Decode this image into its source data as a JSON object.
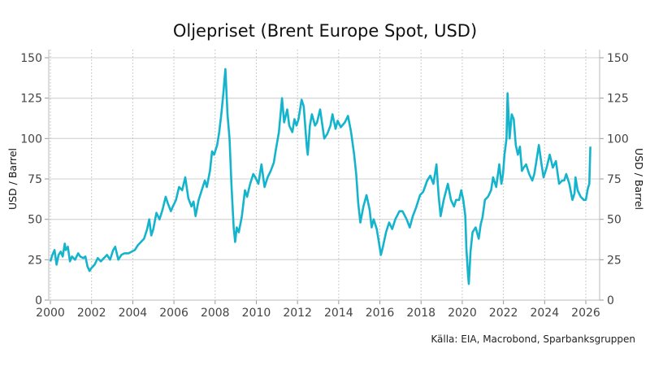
{
  "chart_data": {
    "type": "line",
    "title": "Oljepriset (Brent Europe Spot, USD)",
    "ylabel": "USD / Barrel",
    "ylabel_right": "USD / Barrel",
    "source": "Källa: EIA, Macrobond, Sparbanksgruppen",
    "xlim": [
      2000,
      2026.67
    ],
    "ylim": [
      0,
      150
    ],
    "x_ticks": [
      "2000",
      "2002",
      "2004",
      "2006",
      "2008",
      "2010",
      "2012",
      "2014",
      "2016",
      "2018",
      "2020",
      "2022",
      "2024",
      "2026"
    ],
    "y_ticks": [
      "0",
      "25",
      "50",
      "75",
      "100",
      "125",
      "150"
    ],
    "grid": true,
    "color": "#14B4CC",
    "series": [
      {
        "name": "Brent",
        "points": [
          [
            2000.0,
            24
          ],
          [
            2000.1,
            28
          ],
          [
            2000.2,
            31
          ],
          [
            2000.3,
            22
          ],
          [
            2000.4,
            28
          ],
          [
            2000.5,
            30
          ],
          [
            2000.6,
            27
          ],
          [
            2000.7,
            35
          ],
          [
            2000.75,
            31
          ],
          [
            2000.85,
            33
          ],
          [
            2000.95,
            24
          ],
          [
            2001.05,
            27
          ],
          [
            2001.2,
            25
          ],
          [
            2001.35,
            29
          ],
          [
            2001.45,
            27
          ],
          [
            2001.6,
            26
          ],
          [
            2001.7,
            27
          ],
          [
            2001.8,
            21
          ],
          [
            2001.9,
            18
          ],
          [
            2002.0,
            20
          ],
          [
            2002.15,
            22
          ],
          [
            2002.3,
            26
          ],
          [
            2002.45,
            24
          ],
          [
            2002.6,
            26
          ],
          [
            2002.75,
            28
          ],
          [
            2002.9,
            25
          ],
          [
            2003.05,
            31
          ],
          [
            2003.15,
            33
          ],
          [
            2003.3,
            25
          ],
          [
            2003.45,
            28
          ],
          [
            2003.6,
            29
          ],
          [
            2003.8,
            29
          ],
          [
            2003.95,
            30
          ],
          [
            2004.1,
            31
          ],
          [
            2004.25,
            34
          ],
          [
            2004.4,
            36
          ],
          [
            2004.55,
            38
          ],
          [
            2004.7,
            44
          ],
          [
            2004.8,
            50
          ],
          [
            2004.9,
            40
          ],
          [
            2005.0,
            44
          ],
          [
            2005.15,
            54
          ],
          [
            2005.3,
            50
          ],
          [
            2005.45,
            56
          ],
          [
            2005.6,
            64
          ],
          [
            2005.7,
            60
          ],
          [
            2005.85,
            55
          ],
          [
            2005.95,
            58
          ],
          [
            2006.1,
            62
          ],
          [
            2006.25,
            70
          ],
          [
            2006.4,
            68
          ],
          [
            2006.55,
            76
          ],
          [
            2006.7,
            63
          ],
          [
            2006.85,
            58
          ],
          [
            2006.95,
            61
          ],
          [
            2007.05,
            52
          ],
          [
            2007.2,
            62
          ],
          [
            2007.35,
            68
          ],
          [
            2007.5,
            74
          ],
          [
            2007.6,
            70
          ],
          [
            2007.75,
            80
          ],
          [
            2007.85,
            92
          ],
          [
            2007.95,
            90
          ],
          [
            2008.1,
            96
          ],
          [
            2008.2,
            104
          ],
          [
            2008.3,
            115
          ],
          [
            2008.4,
            128
          ],
          [
            2008.5,
            143
          ],
          [
            2008.6,
            115
          ],
          [
            2008.7,
            100
          ],
          [
            2008.8,
            70
          ],
          [
            2008.9,
            45
          ],
          [
            2008.97,
            36
          ],
          [
            2009.05,
            45
          ],
          [
            2009.15,
            42
          ],
          [
            2009.3,
            52
          ],
          [
            2009.45,
            68
          ],
          [
            2009.55,
            64
          ],
          [
            2009.7,
            72
          ],
          [
            2009.85,
            78
          ],
          [
            2009.95,
            76
          ],
          [
            2010.1,
            72
          ],
          [
            2010.25,
            84
          ],
          [
            2010.4,
            70
          ],
          [
            2010.55,
            76
          ],
          [
            2010.7,
            80
          ],
          [
            2010.85,
            85
          ],
          [
            2010.95,
            93
          ],
          [
            2011.1,
            104
          ],
          [
            2011.25,
            125
          ],
          [
            2011.35,
            110
          ],
          [
            2011.5,
            118
          ],
          [
            2011.6,
            108
          ],
          [
            2011.75,
            104
          ],
          [
            2011.85,
            112
          ],
          [
            2011.95,
            108
          ],
          [
            2012.05,
            112
          ],
          [
            2012.2,
            124
          ],
          [
            2012.3,
            120
          ],
          [
            2012.45,
            95
          ],
          [
            2012.5,
            90
          ],
          [
            2012.6,
            108
          ],
          [
            2012.7,
            115
          ],
          [
            2012.85,
            108
          ],
          [
            2012.95,
            110
          ],
          [
            2013.1,
            118
          ],
          [
            2013.3,
            100
          ],
          [
            2013.45,
            103
          ],
          [
            2013.6,
            108
          ],
          [
            2013.7,
            115
          ],
          [
            2013.85,
            106
          ],
          [
            2013.95,
            111
          ],
          [
            2014.1,
            107
          ],
          [
            2014.3,
            110
          ],
          [
            2014.45,
            114
          ],
          [
            2014.6,
            104
          ],
          [
            2014.75,
            90
          ],
          [
            2014.85,
            78
          ],
          [
            2014.95,
            60
          ],
          [
            2015.05,
            48
          ],
          [
            2015.2,
            58
          ],
          [
            2015.35,
            65
          ],
          [
            2015.5,
            56
          ],
          [
            2015.6,
            45
          ],
          [
            2015.7,
            50
          ],
          [
            2015.85,
            44
          ],
          [
            2015.95,
            36
          ],
          [
            2016.05,
            28
          ],
          [
            2016.15,
            33
          ],
          [
            2016.3,
            42
          ],
          [
            2016.45,
            48
          ],
          [
            2016.6,
            44
          ],
          [
            2016.75,
            50
          ],
          [
            2016.95,
            55
          ],
          [
            2017.1,
            55
          ],
          [
            2017.3,
            50
          ],
          [
            2017.45,
            45
          ],
          [
            2017.6,
            52
          ],
          [
            2017.75,
            57
          ],
          [
            2017.95,
            65
          ],
          [
            2018.1,
            67
          ],
          [
            2018.3,
            74
          ],
          [
            2018.45,
            77
          ],
          [
            2018.6,
            72
          ],
          [
            2018.75,
            84
          ],
          [
            2018.85,
            65
          ],
          [
            2018.95,
            52
          ],
          [
            2019.1,
            62
          ],
          [
            2019.3,
            72
          ],
          [
            2019.45,
            62
          ],
          [
            2019.6,
            58
          ],
          [
            2019.7,
            62
          ],
          [
            2019.85,
            62
          ],
          [
            2019.95,
            68
          ],
          [
            2020.05,
            62
          ],
          [
            2020.15,
            52
          ],
          [
            2020.2,
            32
          ],
          [
            2020.28,
            16
          ],
          [
            2020.32,
            10
          ],
          [
            2020.4,
            30
          ],
          [
            2020.5,
            42
          ],
          [
            2020.65,
            45
          ],
          [
            2020.8,
            38
          ],
          [
            2020.9,
            47
          ],
          [
            2020.98,
            51
          ],
          [
            2021.1,
            62
          ],
          [
            2021.25,
            64
          ],
          [
            2021.4,
            68
          ],
          [
            2021.5,
            76
          ],
          [
            2021.65,
            70
          ],
          [
            2021.8,
            84
          ],
          [
            2021.9,
            72
          ],
          [
            2021.98,
            78
          ],
          [
            2022.05,
            90
          ],
          [
            2022.15,
            100
          ],
          [
            2022.2,
            128
          ],
          [
            2022.3,
            100
          ],
          [
            2022.4,
            115
          ],
          [
            2022.5,
            112
          ],
          [
            2022.6,
            96
          ],
          [
            2022.7,
            90
          ],
          [
            2022.8,
            95
          ],
          [
            2022.9,
            80
          ],
          [
            2022.98,
            82
          ],
          [
            2023.1,
            84
          ],
          [
            2023.25,
            78
          ],
          [
            2023.4,
            74
          ],
          [
            2023.5,
            78
          ],
          [
            2023.6,
            86
          ],
          [
            2023.72,
            96
          ],
          [
            2023.85,
            84
          ],
          [
            2023.95,
            76
          ],
          [
            2024.1,
            82
          ],
          [
            2024.25,
            90
          ],
          [
            2024.4,
            82
          ],
          [
            2024.55,
            86
          ],
          [
            2024.7,
            72
          ],
          [
            2024.85,
            74
          ],
          [
            2024.95,
            74
          ],
          [
            2025.05,
            78
          ],
          [
            2025.2,
            72
          ],
          [
            2025.35,
            62
          ],
          [
            2025.45,
            66
          ],
          [
            2025.5,
            76
          ],
          [
            2025.6,
            68
          ],
          [
            2025.75,
            64
          ],
          [
            2025.9,
            62
          ],
          [
            2026.0,
            62
          ],
          [
            2026.1,
            69
          ],
          [
            2026.17,
            72
          ],
          [
            2026.22,
            95
          ]
        ]
      }
    ]
  }
}
